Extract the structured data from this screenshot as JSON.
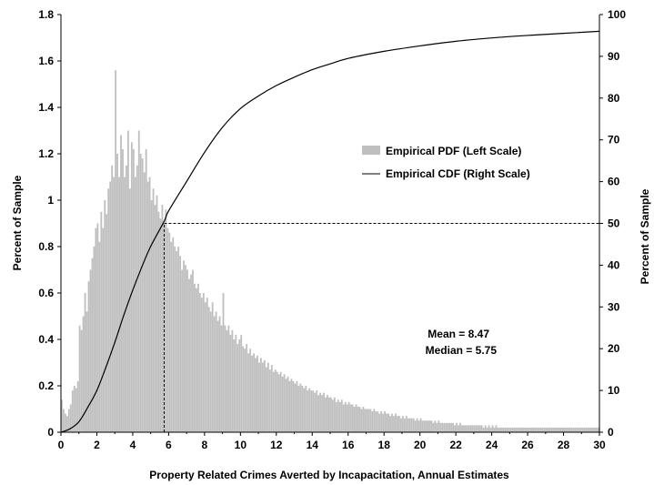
{
  "chart_data": {
    "type": "bar",
    "xlabel": "Property Related Crimes Averted by Incapacitation, Annual Estimates",
    "ylabel": "Percent of Sample",
    "y2label": "Percent of Sample",
    "xlim": [
      0,
      30
    ],
    "ylim": [
      0,
      1.8
    ],
    "y2lim": [
      0,
      100
    ],
    "bin_width": 0.1,
    "x_ticks": [
      "0",
      "2",
      "4",
      "6",
      "8",
      "10",
      "12",
      "14",
      "16",
      "18",
      "20",
      "22",
      "24",
      "26",
      "28",
      "30"
    ],
    "y_ticks": [
      "0",
      "0.2",
      "0.4",
      "0.6",
      "0.8",
      "1",
      "1.2",
      "1.4",
      "1.6",
      "1.8"
    ],
    "y2_ticks": [
      "0",
      "10",
      "20",
      "30",
      "40",
      "50",
      "60",
      "70",
      "80",
      "90",
      "100"
    ],
    "legend": {
      "placement": "center-right",
      "pdf_label": "Empirical PDF (Left Scale)",
      "cdf_label": "Empirical CDF (Right Scale)"
    },
    "annotations": {
      "mean": "Mean = 8.47",
      "median": "Median = 5.75"
    },
    "reference_lines": {
      "median_x": 5.75,
      "cdf_at_median": 50
    },
    "colors": {
      "pdf_bar": "#bfbfbf",
      "cdf_line": "#000000"
    },
    "series": [
      {
        "name": "Empirical PDF (Left Scale)",
        "kind": "bar",
        "x_start": 0.0,
        "values": [
          0.14,
          0.1,
          0.08,
          0.07,
          0.1,
          0.12,
          0.18,
          0.2,
          0.19,
          0.22,
          0.46,
          0.44,
          0.5,
          0.6,
          0.52,
          0.65,
          0.7,
          0.75,
          0.8,
          0.88,
          0.9,
          0.82,
          0.95,
          0.88,
          1.0,
          0.94,
          1.05,
          1.08,
          1.15,
          1.1,
          1.56,
          1.2,
          1.1,
          1.28,
          1.22,
          1.1,
          1.15,
          1.3,
          1.05,
          1.25,
          1.22,
          1.1,
          1.15,
          1.3,
          1.2,
          1.18,
          1.12,
          1.22,
          1.08,
          1.1,
          1.0,
          1.05,
          0.98,
          1.02,
          0.95,
          0.92,
          0.98,
          0.9,
          0.96,
          0.88,
          0.86,
          0.82,
          0.84,
          0.8,
          0.78,
          0.8,
          0.76,
          0.7,
          0.74,
          0.72,
          0.7,
          0.66,
          0.68,
          0.7,
          0.64,
          0.62,
          0.64,
          0.6,
          0.58,
          0.6,
          0.56,
          0.58,
          0.54,
          0.52,
          0.56,
          0.5,
          0.52,
          0.48,
          0.5,
          0.46,
          0.6,
          0.46,
          0.44,
          0.46,
          0.42,
          0.44,
          0.4,
          0.42,
          0.38,
          0.4,
          0.42,
          0.37,
          0.36,
          0.38,
          0.34,
          0.36,
          0.33,
          0.34,
          0.32,
          0.33,
          0.3,
          0.32,
          0.3,
          0.31,
          0.28,
          0.3,
          0.27,
          0.29,
          0.26,
          0.27,
          0.26,
          0.25,
          0.26,
          0.24,
          0.25,
          0.23,
          0.24,
          0.22,
          0.23,
          0.22,
          0.21,
          0.22,
          0.2,
          0.21,
          0.2,
          0.19,
          0.2,
          0.18,
          0.19,
          0.18,
          0.18,
          0.17,
          0.18,
          0.16,
          0.17,
          0.16,
          0.17,
          0.15,
          0.16,
          0.15,
          0.15,
          0.14,
          0.15,
          0.13,
          0.14,
          0.13,
          0.14,
          0.12,
          0.13,
          0.12,
          0.13,
          0.12,
          0.12,
          0.11,
          0.12,
          0.11,
          0.11,
          0.1,
          0.11,
          0.1,
          0.1,
          0.1,
          0.1,
          0.09,
          0.1,
          0.09,
          0.09,
          0.08,
          0.09,
          0.08,
          0.09,
          0.08,
          0.08,
          0.07,
          0.08,
          0.07,
          0.08,
          0.07,
          0.07,
          0.06,
          0.07,
          0.06,
          0.07,
          0.06,
          0.06,
          0.06,
          0.06,
          0.05,
          0.06,
          0.05,
          0.06,
          0.05,
          0.05,
          0.05,
          0.05,
          0.05,
          0.05,
          0.04,
          0.05,
          0.04,
          0.05,
          0.04,
          0.04,
          0.04,
          0.04,
          0.04,
          0.04,
          0.04,
          0.04,
          0.03,
          0.04,
          0.03,
          0.04,
          0.03,
          0.03,
          0.03,
          0.03,
          0.03,
          0.03,
          0.03,
          0.03,
          0.03,
          0.03,
          0.03,
          0.03,
          0.02,
          0.03,
          0.02,
          0.03,
          0.02,
          0.03,
          0.02,
          0.03,
          0.02,
          0.02,
          0.02,
          0.02,
          0.02,
          0.02,
          0.02,
          0.02,
          0.02,
          0.02,
          0.02,
          0.02,
          0.02,
          0.02,
          0.02,
          0.02,
          0.02,
          0.02,
          0.02,
          0.02,
          0.02,
          0.02,
          0.02,
          0.02,
          0.02,
          0.02,
          0.02,
          0.02,
          0.02,
          0.02,
          0.02,
          0.02,
          0.02,
          0.02,
          0.02,
          0.02,
          0.02,
          0.02,
          0.02,
          0.02,
          0.02,
          0.02,
          0.02,
          0.02,
          0.02,
          0.02,
          0.02,
          0.02,
          0.02,
          0.02,
          0.02,
          0.02,
          0.02,
          0.02,
          0.02,
          0.02,
          0.02
        ]
      },
      {
        "name": "Empirical CDF (Right Scale)",
        "kind": "line",
        "x": [
          0,
          0.5,
          1,
          1.5,
          2,
          2.5,
          3,
          3.5,
          4,
          4.5,
          5,
          5.75,
          6,
          7,
          8,
          9,
          10,
          11,
          12,
          13,
          14,
          15,
          16,
          18,
          20,
          22,
          24,
          26,
          28,
          30
        ],
        "y": [
          0,
          0.8,
          2.5,
          6,
          10,
          15.5,
          21.5,
          28,
          34,
          39.5,
          44.5,
          50.5,
          53,
          60,
          67,
          73,
          77.5,
          80.5,
          83,
          85,
          86.8,
          88.2,
          89.5,
          91.2,
          92.5,
          93.6,
          94.4,
          95,
          95.5,
          96
        ]
      }
    ]
  }
}
